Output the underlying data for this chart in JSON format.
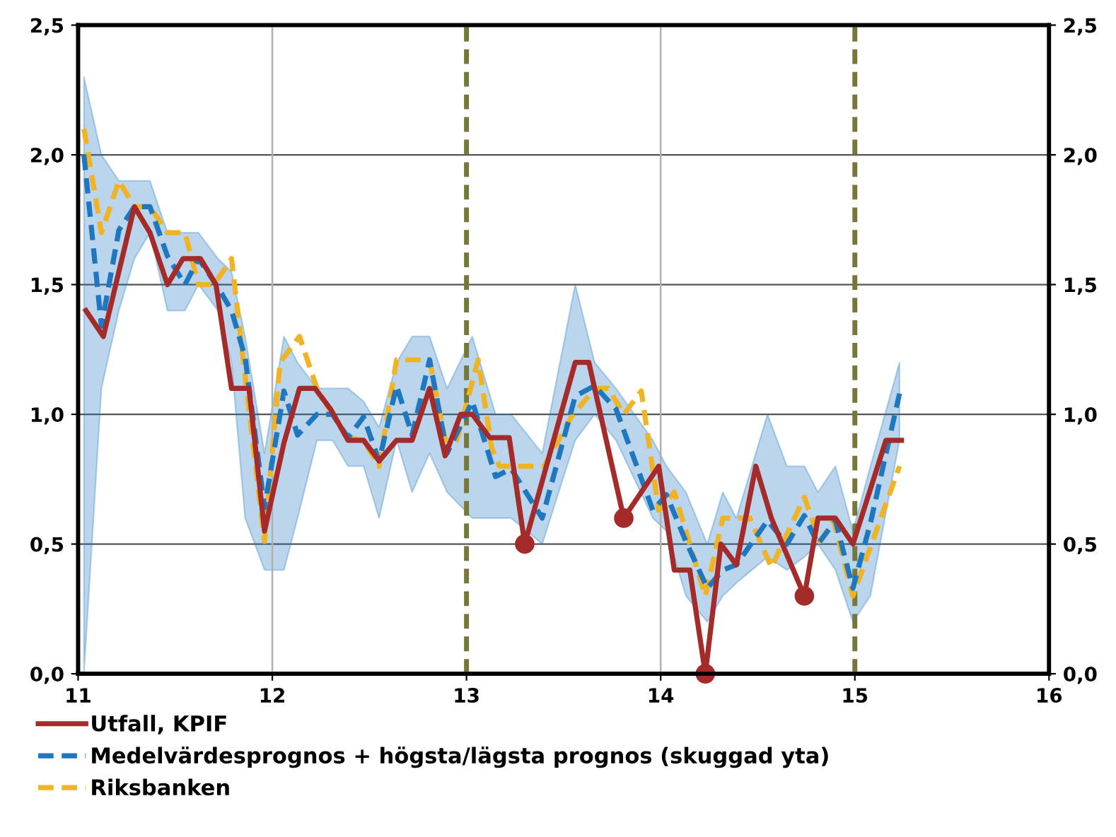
{
  "chart_data": {
    "type": "line",
    "xlim": [
      11,
      16
    ],
    "xticks": [
      11,
      12,
      13,
      14,
      15,
      16
    ],
    "ylim": [
      0,
      2.5
    ],
    "yticks": [
      {
        "value": 0,
        "label": "0,0"
      },
      {
        "value": 0.5,
        "label": "0,5"
      },
      {
        "value": 1,
        "label": "1,0"
      },
      {
        "value": 1.5,
        "label": "1,5"
      },
      {
        "value": 2,
        "label": "2,0"
      },
      {
        "value": 2.5,
        "label": "2,5"
      }
    ],
    "y2lim": [
      0,
      2.5
    ],
    "y2ticks": [
      {
        "value": 0,
        "label": "0,0"
      },
      {
        "value": 0.5,
        "label": "0,5"
      },
      {
        "value": 1,
        "label": "1,0"
      },
      {
        "value": 1.5,
        "label": "1,5"
      },
      {
        "value": 2,
        "label": "2,0"
      },
      {
        "value": 2.5,
        "label": "2,5"
      }
    ],
    "grid": "y",
    "legend": "bottom",
    "ref_lines": [
      {
        "axis": "x",
        "value": 12,
        "color": "#b0b0b0",
        "line_style": "solid"
      },
      {
        "axis": "x",
        "value": 14,
        "color": "#b0b0b0",
        "line_style": "solid"
      },
      {
        "axis": "x",
        "value": 13,
        "color": "#77773a",
        "line_style": "dashed"
      },
      {
        "axis": "x",
        "value": 15,
        "color": "#77773a",
        "line_style": "dashed"
      }
    ],
    "series": [
      {
        "name": "Utfall, KPIF",
        "color": "#a52a2a",
        "line_style": "solid",
        "x": [
          11.04,
          11.13,
          11.29,
          11.37,
          11.46,
          11.54,
          11.63,
          11.71,
          11.79,
          11.88,
          11.96,
          12.06,
          12.14,
          12.22,
          12.3,
          12.39,
          12.47,
          12.55,
          12.64,
          12.72,
          12.81,
          12.89,
          12.97,
          13.03,
          13.12,
          13.22,
          13.3,
          13.56,
          13.63,
          13.81,
          13.99,
          14.07,
          14.15,
          14.23,
          14.31,
          14.39,
          14.49,
          14.57,
          14.74,
          14.81,
          14.9,
          14.99,
          15.16,
          15.24
        ],
        "values": [
          1.4,
          1.3,
          1.8,
          1.7,
          1.5,
          1.6,
          1.6,
          1.5,
          1.1,
          1.1,
          0.55,
          0.89,
          1.1,
          1.1,
          1.02,
          0.9,
          0.9,
          0.82,
          0.9,
          0.9,
          1.1,
          0.84,
          1.0,
          1.0,
          0.91,
          0.91,
          0.5,
          1.2,
          1.2,
          0.6,
          0.8,
          0.4,
          0.4,
          0.0,
          0.5,
          0.42,
          0.8,
          0.6,
          0.3,
          0.6,
          0.6,
          0.5,
          0.9,
          0.9
        ]
      },
      {
        "name": "Medelvärdesprognos + högsta/lägsta prognos (skuggad yta)",
        "color": "#1f77c0",
        "line_style": "dashed",
        "x": [
          11.03,
          11.12,
          11.21,
          11.29,
          11.37,
          11.46,
          11.55,
          11.62,
          11.72,
          11.79,
          11.86,
          11.96,
          12.06,
          12.13,
          12.23,
          12.31,
          12.39,
          12.47,
          12.55,
          12.64,
          12.72,
          12.81,
          12.9,
          13.03,
          13.15,
          13.23,
          13.39,
          13.56,
          13.66,
          13.77,
          13.96,
          14.03,
          14.13,
          14.24,
          14.32,
          14.39,
          14.55,
          14.65,
          14.74,
          14.81,
          14.9,
          14.99,
          15.08,
          15.23
        ],
        "values": [
          2.0,
          1.34,
          1.71,
          1.8,
          1.8,
          1.61,
          1.5,
          1.6,
          1.49,
          1.4,
          1.22,
          0.64,
          1.09,
          0.92,
          1.0,
          1.0,
          0.91,
          0.99,
          0.82,
          1.11,
          0.92,
          1.21,
          0.85,
          1.05,
          0.76,
          0.79,
          0.6,
          1.07,
          1.11,
          1.02,
          0.63,
          0.69,
          0.51,
          0.33,
          0.4,
          0.42,
          0.59,
          0.5,
          0.61,
          0.5,
          0.59,
          0.33,
          0.58,
          1.08
        ],
        "upper": [
          2.3,
          2.0,
          1.9,
          1.9,
          1.9,
          1.7,
          1.7,
          1.7,
          1.6,
          1.55,
          1.3,
          0.85,
          1.3,
          1.2,
          1.1,
          1.1,
          1.1,
          1.05,
          0.95,
          1.2,
          1.3,
          1.3,
          1.1,
          1.3,
          1.0,
          1.0,
          0.85,
          1.5,
          1.2,
          1.1,
          0.9,
          0.8,
          0.7,
          0.5,
          0.7,
          0.6,
          1.0,
          0.8,
          0.8,
          0.7,
          0.8,
          0.55,
          0.8,
          1.2
        ],
        "lower": [
          0.0,
          1.1,
          1.4,
          1.6,
          1.7,
          1.4,
          1.4,
          1.5,
          1.4,
          1.2,
          0.6,
          0.4,
          0.4,
          0.6,
          0.9,
          0.9,
          0.8,
          0.8,
          0.6,
          0.9,
          0.7,
          0.85,
          0.7,
          0.6,
          0.6,
          0.6,
          0.5,
          0.9,
          1.0,
          0.9,
          0.6,
          0.55,
          0.3,
          0.2,
          0.3,
          0.35,
          0.45,
          0.4,
          0.45,
          0.5,
          0.4,
          0.2,
          0.3,
          0.9
        ]
      },
      {
        "name": "Riksbanken",
        "color": "#f0b323",
        "line_style": "dashed",
        "x": [
          11.03,
          11.12,
          11.21,
          11.29,
          11.37,
          11.46,
          11.55,
          11.62,
          11.7,
          11.79,
          11.88,
          11.96,
          12.04,
          12.14,
          12.23,
          12.31,
          12.39,
          12.47,
          12.55,
          12.64,
          12.72,
          12.81,
          12.89,
          12.95,
          13.06,
          13.13,
          13.17,
          13.4,
          13.54,
          13.66,
          13.73,
          13.81,
          13.9,
          13.99,
          14.07,
          14.23,
          14.32,
          14.46,
          14.57,
          14.74,
          14.82,
          14.89,
          14.99,
          15.23
        ],
        "values": [
          2.1,
          1.7,
          1.9,
          1.8,
          1.8,
          1.7,
          1.7,
          1.5,
          1.5,
          1.6,
          1.02,
          0.51,
          1.2,
          1.3,
          1.1,
          1.0,
          0.91,
          0.9,
          0.8,
          1.21,
          1.21,
          1.21,
          0.9,
          0.9,
          1.21,
          0.87,
          0.8,
          0.8,
          0.99,
          1.1,
          1.1,
          1.0,
          1.09,
          0.63,
          0.7,
          0.3,
          0.6,
          0.6,
          0.41,
          0.68,
          0.51,
          0.59,
          0.3,
          0.8
        ]
      },
      {
        "type": "scatter",
        "color": "#a52a2a",
        "marker": "circle",
        "x": [
          13.3,
          13.81,
          14.23,
          14.74
        ],
        "values": [
          0.5,
          0.6,
          0.0,
          0.3
        ]
      }
    ]
  }
}
